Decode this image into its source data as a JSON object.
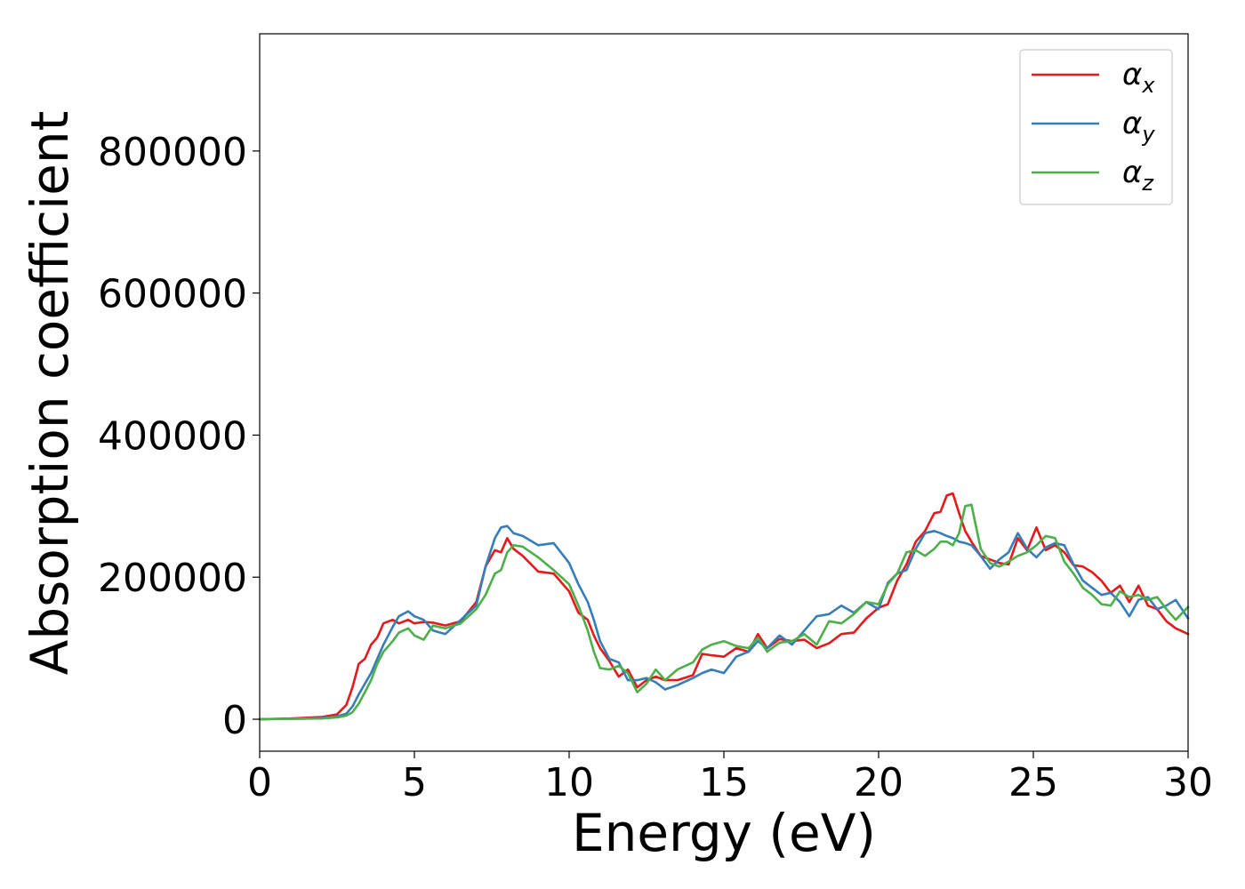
{
  "chart_data": {
    "type": "line",
    "title": "",
    "xlabel": "Energy (eV)",
    "ylabel": "Absorption coefficient",
    "xlim": [
      0,
      30
    ],
    "ylim": [
      -45000,
      965000
    ],
    "xticks": [
      0,
      5,
      10,
      15,
      20,
      25,
      30
    ],
    "xtick_labels": [
      "0",
      "5",
      "10",
      "15",
      "20",
      "25",
      "30"
    ],
    "yticks": [
      0,
      200000,
      400000,
      600000,
      800000
    ],
    "ytick_labels": [
      "0",
      "200000",
      "400000",
      "600000",
      "800000"
    ],
    "grid": false,
    "legend_position": "top-right",
    "series": [
      {
        "name": "α_x",
        "legend_base": "α",
        "legend_sub": "x",
        "color": "#e41a1c",
        "x": [
          0,
          1,
          2,
          2.5,
          2.8,
          3.0,
          3.2,
          3.4,
          3.6,
          3.8,
          4.0,
          4.3,
          4.5,
          4.8,
          5.0,
          5.3,
          5.6,
          6.0,
          6.5,
          7.0,
          7.3,
          7.6,
          7.8,
          8.0,
          8.2,
          8.5,
          9.0,
          9.5,
          10.0,
          10.3,
          10.6,
          10.8,
          11.0,
          11.3,
          11.6,
          11.9,
          12.2,
          12.5,
          12.8,
          13.1,
          13.5,
          14.0,
          14.3,
          14.6,
          15.0,
          15.4,
          15.8,
          16.1,
          16.4,
          16.8,
          17.2,
          17.6,
          18.0,
          18.4,
          18.8,
          19.2,
          19.6,
          20.0,
          20.3,
          20.6,
          20.9,
          21.2,
          21.5,
          21.8,
          22.0,
          22.2,
          22.4,
          22.6,
          22.8,
          23.0,
          23.3,
          23.6,
          23.9,
          24.2,
          24.5,
          24.8,
          25.1,
          25.4,
          25.7,
          26.0,
          26.3,
          26.6,
          26.9,
          27.2,
          27.5,
          27.8,
          28.1,
          28.4,
          28.7,
          29.0,
          29.3,
          29.6,
          30.0
        ],
        "y": [
          0,
          1000,
          3000,
          7000,
          20000,
          45000,
          78000,
          85000,
          105000,
          115000,
          135000,
          140000,
          135000,
          140000,
          135000,
          137000,
          136000,
          132000,
          138000,
          165000,
          215000,
          238000,
          235000,
          255000,
          240000,
          230000,
          208000,
          205000,
          180000,
          150000,
          140000,
          118000,
          100000,
          82000,
          60000,
          70000,
          45000,
          55000,
          60000,
          55000,
          55000,
          62000,
          92000,
          90000,
          88000,
          100000,
          95000,
          120000,
          100000,
          113000,
          110000,
          112000,
          100000,
          107000,
          120000,
          122000,
          142000,
          157000,
          162000,
          195000,
          218000,
          250000,
          265000,
          290000,
          292000,
          315000,
          318000,
          290000,
          265000,
          250000,
          230000,
          225000,
          220000,
          218000,
          255000,
          238000,
          270000,
          238000,
          245000,
          235000,
          217000,
          215000,
          207000,
          195000,
          178000,
          188000,
          165000,
          188000,
          160000,
          155000,
          138000,
          128000,
          120000
        ]
      },
      {
        "name": "α_y",
        "legend_base": "α",
        "legend_sub": "y",
        "color": "#377eb8",
        "x": [
          0,
          1,
          2,
          2.5,
          2.8,
          3.0,
          3.2,
          3.4,
          3.6,
          3.8,
          4.0,
          4.3,
          4.5,
          4.8,
          5.0,
          5.3,
          5.6,
          6.0,
          6.5,
          7.0,
          7.3,
          7.6,
          7.8,
          8.0,
          8.2,
          8.5,
          9.0,
          9.5,
          10.0,
          10.3,
          10.6,
          10.8,
          11.0,
          11.3,
          11.6,
          11.9,
          12.2,
          12.5,
          12.8,
          13.1,
          13.5,
          14.0,
          14.3,
          14.6,
          15.0,
          15.4,
          15.8,
          16.1,
          16.4,
          16.8,
          17.2,
          17.6,
          18.0,
          18.4,
          18.8,
          19.2,
          19.6,
          20.0,
          20.3,
          20.6,
          20.9,
          21.2,
          21.5,
          21.8,
          22.0,
          22.2,
          22.4,
          22.6,
          22.8,
          23.0,
          23.3,
          23.6,
          23.9,
          24.2,
          24.5,
          24.8,
          25.1,
          25.4,
          25.7,
          26.0,
          26.3,
          26.6,
          26.9,
          27.2,
          27.5,
          27.8,
          28.1,
          28.4,
          28.7,
          29.0,
          29.3,
          29.6,
          30.0
        ],
        "y": [
          0,
          500,
          1500,
          4000,
          8000,
          18000,
          35000,
          50000,
          65000,
          85000,
          105000,
          130000,
          145000,
          152000,
          145000,
          140000,
          125000,
          120000,
          140000,
          160000,
          215000,
          255000,
          270000,
          272000,
          262000,
          258000,
          245000,
          248000,
          220000,
          190000,
          165000,
          140000,
          110000,
          85000,
          80000,
          55000,
          55000,
          58000,
          52000,
          42000,
          48000,
          58000,
          65000,
          70000,
          65000,
          88000,
          95000,
          110000,
          100000,
          118000,
          105000,
          125000,
          145000,
          148000,
          160000,
          150000,
          165000,
          155000,
          192000,
          205000,
          210000,
          240000,
          262000,
          265000,
          262000,
          258000,
          255000,
          250000,
          248000,
          245000,
          230000,
          212000,
          225000,
          235000,
          262000,
          240000,
          228000,
          242000,
          248000,
          245000,
          218000,
          195000,
          185000,
          175000,
          178000,
          165000,
          145000,
          168000,
          172000,
          155000,
          160000,
          168000,
          142000
        ]
      },
      {
        "name": "α_z",
        "legend_base": "α",
        "legend_sub": "z",
        "color": "#4daf4a",
        "x": [
          0,
          1,
          2,
          2.5,
          2.8,
          3.0,
          3.2,
          3.4,
          3.6,
          3.8,
          4.0,
          4.3,
          4.5,
          4.8,
          5.0,
          5.3,
          5.6,
          6.0,
          6.5,
          7.0,
          7.3,
          7.6,
          7.8,
          8.0,
          8.2,
          8.5,
          9.0,
          9.5,
          10.0,
          10.3,
          10.6,
          10.8,
          11.0,
          11.3,
          11.6,
          11.9,
          12.2,
          12.5,
          12.8,
          13.1,
          13.5,
          14.0,
          14.3,
          14.6,
          15.0,
          15.4,
          15.8,
          16.1,
          16.4,
          16.8,
          17.2,
          17.6,
          18.0,
          18.4,
          18.8,
          19.2,
          19.6,
          20.0,
          20.3,
          20.6,
          20.9,
          21.2,
          21.5,
          21.8,
          22.0,
          22.2,
          22.4,
          22.6,
          22.8,
          23.0,
          23.3,
          23.6,
          23.9,
          24.2,
          24.5,
          24.8,
          25.1,
          25.4,
          25.7,
          26.0,
          26.3,
          26.6,
          26.9,
          27.2,
          27.5,
          27.8,
          28.1,
          28.4,
          28.7,
          29.0,
          29.3,
          29.6,
          30.0
        ],
        "y": [
          0,
          500,
          1000,
          2500,
          5000,
          10000,
          22000,
          38000,
          55000,
          78000,
          95000,
          110000,
          122000,
          128000,
          118000,
          112000,
          132000,
          128000,
          135000,
          155000,
          175000,
          205000,
          210000,
          235000,
          245000,
          243000,
          228000,
          210000,
          190000,
          160000,
          125000,
          95000,
          72000,
          70000,
          75000,
          65000,
          38000,
          50000,
          70000,
          55000,
          70000,
          80000,
          98000,
          105000,
          110000,
          103000,
          100000,
          115000,
          95000,
          108000,
          110000,
          120000,
          105000,
          138000,
          135000,
          148000,
          165000,
          162000,
          190000,
          205000,
          235000,
          238000,
          230000,
          240000,
          250000,
          250000,
          245000,
          262000,
          300000,
          302000,
          240000,
          220000,
          215000,
          222000,
          230000,
          235000,
          245000,
          258000,
          255000,
          222000,
          205000,
          185000,
          175000,
          162000,
          160000,
          180000,
          172000,
          175000,
          168000,
          172000,
          155000,
          140000,
          158000
        ]
      }
    ]
  }
}
